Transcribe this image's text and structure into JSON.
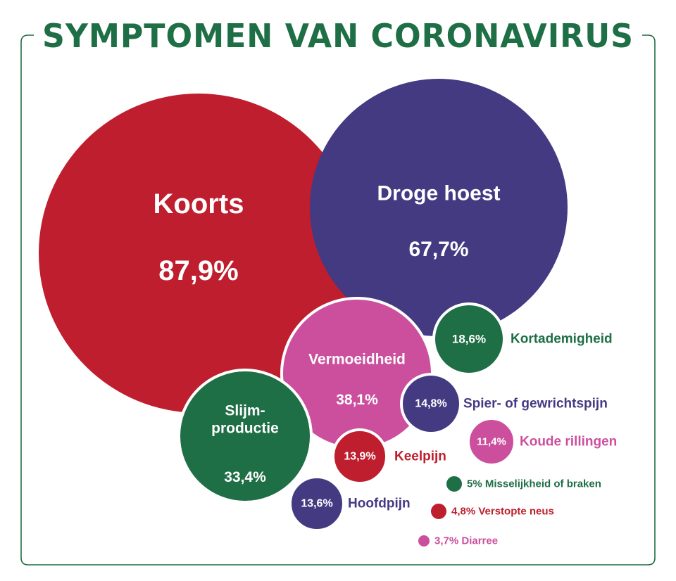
{
  "colors": {
    "red": "#be1e2d",
    "purple": "#433a82",
    "pink": "#cc4f9e",
    "green": "#1e6e46",
    "white": "#ffffff",
    "border": "#1e6e46"
  },
  "chart_data": {
    "type": "bubble",
    "title": "SYMPTOMEN VAN CORONAVIRUS",
    "items": [
      {
        "name": "Koorts",
        "value": 87.9,
        "value_label": "87,9%",
        "color": "red",
        "label_position": "inside"
      },
      {
        "name": "Droge hoest",
        "value": 67.7,
        "value_label": "67,7%",
        "color": "purple",
        "label_position": "inside"
      },
      {
        "name": "Vermoeidheid",
        "value": 38.1,
        "value_label": "38,1%",
        "color": "pink",
        "label_position": "inside"
      },
      {
        "name": "Slijm-productie",
        "name_lines": [
          "Slijm-",
          "productie"
        ],
        "value": 33.4,
        "value_label": "33,4%",
        "color": "green",
        "label_position": "inside"
      },
      {
        "name": "Kortademigheid",
        "value": 18.6,
        "value_label": "18,6%",
        "color": "green",
        "label_position": "right"
      },
      {
        "name": "Spier- of gewrichtspijn",
        "value": 14.8,
        "value_label": "14,8%",
        "color": "purple",
        "label_position": "right"
      },
      {
        "name": "Keelpijn",
        "value": 13.9,
        "value_label": "13,9%",
        "color": "red",
        "label_position": "right"
      },
      {
        "name": "Hoofdpijn",
        "value": 13.6,
        "value_label": "13,6%",
        "color": "purple",
        "label_position": "right"
      },
      {
        "name": "Koude rillingen",
        "value": 11.4,
        "value_label": "11,4%",
        "color": "pink",
        "label_position": "right"
      },
      {
        "name": "Misselijkheid of braken",
        "value": 5.0,
        "value_label": "5%",
        "color": "green",
        "label_position": "right-with-value"
      },
      {
        "name": "Verstopte neus",
        "value": 4.8,
        "value_label": "4,8%",
        "color": "red",
        "label_position": "right-with-value"
      },
      {
        "name": "Diarree",
        "value": 3.7,
        "value_label": "3,7%",
        "color": "pink",
        "label_position": "right-with-value"
      }
    ]
  }
}
